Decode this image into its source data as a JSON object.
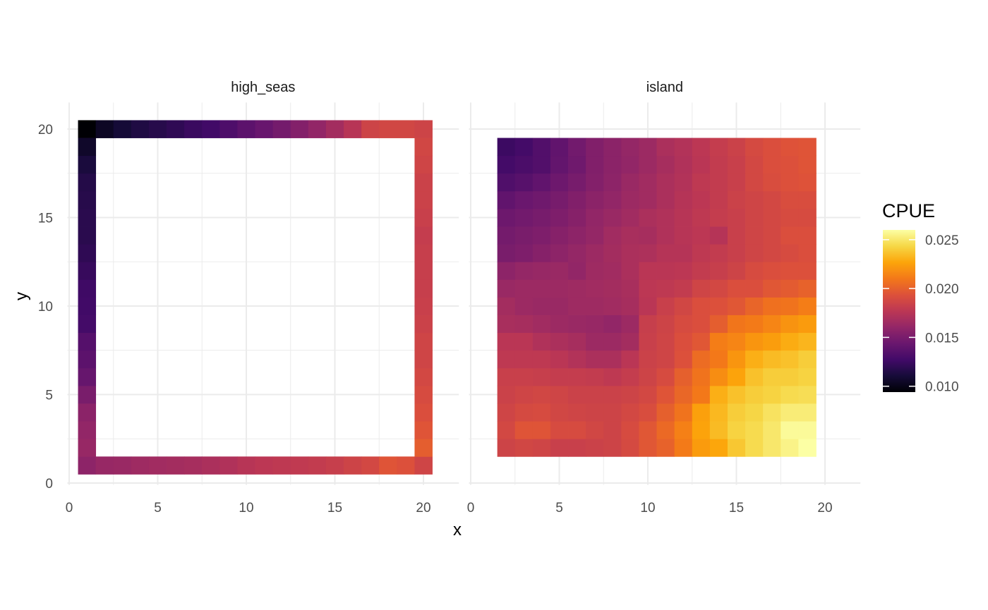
{
  "chart_data": {
    "type": "heatmap",
    "xlabel": "x",
    "ylabel": "y",
    "xlim": [
      0,
      20.5
    ],
    "ylim": [
      0,
      20.5
    ],
    "x_ticks": [
      0,
      5,
      10,
      15,
      20
    ],
    "y_ticks": [
      0,
      5,
      10,
      15,
      20
    ],
    "grid": true,
    "colorscale": "inferno",
    "legend": {
      "title": "CPUE",
      "placement": "right",
      "range": [
        0.0094,
        0.026
      ],
      "ticks": [
        0.01,
        0.015,
        0.02,
        0.025
      ],
      "tick_labels": [
        "0.010",
        "0.015",
        "0.020",
        "0.025"
      ]
    },
    "panels": [
      {
        "name": "high_seas",
        "top_row": {
          "y": 20,
          "x": [
            1,
            2,
            3,
            4,
            5,
            6,
            7,
            8,
            9,
            10,
            11,
            12,
            13,
            14,
            15,
            16,
            17,
            18,
            19,
            20
          ],
          "values": [
            0.0094,
            0.0104,
            0.011,
            0.0114,
            0.0117,
            0.012,
            0.0124,
            0.0127,
            0.0132,
            0.0138,
            0.0143,
            0.0148,
            0.0154,
            0.016,
            0.0167,
            0.0175,
            0.0185,
            0.0187,
            0.0187,
            0.0185
          ]
        },
        "bottom_row": {
          "y": 1,
          "x": [
            1,
            2,
            3,
            4,
            5,
            6,
            7,
            8,
            9,
            10,
            11,
            12,
            13,
            14,
            15,
            16,
            17,
            18,
            19,
            20
          ],
          "values": [
            0.0158,
            0.0162,
            0.0163,
            0.0165,
            0.0166,
            0.0167,
            0.0168,
            0.017,
            0.0172,
            0.0175,
            0.0177,
            0.0178,
            0.0179,
            0.018,
            0.0182,
            0.0185,
            0.0188,
            0.0195,
            0.0193,
            0.0186
          ]
        },
        "left_column": {
          "x": 1,
          "y": [
            2,
            3,
            4,
            5,
            6,
            7,
            8,
            9,
            10,
            11,
            12,
            13,
            14,
            15,
            16,
            17,
            18,
            19
          ],
          "values": [
            0.0162,
            0.016,
            0.0157,
            0.015,
            0.0142,
            0.0138,
            0.0135,
            0.0128,
            0.0127,
            0.0126,
            0.0123,
            0.012,
            0.0118,
            0.0118,
            0.0117,
            0.0116,
            0.0112,
            0.0106
          ]
        },
        "right_column": {
          "x": 20,
          "y": [
            2,
            3,
            4,
            5,
            6,
            7,
            8,
            9,
            10,
            11,
            12,
            13,
            14,
            15,
            16,
            17,
            18,
            19
          ],
          "values": [
            0.0199,
            0.0195,
            0.0192,
            0.019,
            0.0188,
            0.0186,
            0.0186,
            0.0184,
            0.0183,
            0.0182,
            0.0182,
            0.0182,
            0.0181,
            0.0183,
            0.0184,
            0.0184,
            0.0186,
            0.0187
          ]
        }
      },
      {
        "name": "island",
        "x": [
          2,
          3,
          4,
          5,
          6,
          7,
          8,
          9,
          10,
          11,
          12,
          13,
          14,
          15,
          16,
          17,
          18,
          19
        ],
        "y": [
          2,
          3,
          4,
          5,
          6,
          7,
          8,
          9,
          10,
          11,
          12,
          13,
          14,
          15,
          16,
          17,
          18,
          19
        ],
        "values": [
          [
            0.0185,
            0.0187,
            0.0186,
            0.0183,
            0.0183,
            0.0184,
            0.0185,
            0.0189,
            0.0196,
            0.0201,
            0.0211,
            0.0223,
            0.0227,
            0.0238,
            0.0245,
            0.025,
            0.0255,
            0.026
          ],
          [
            0.0188,
            0.0195,
            0.0195,
            0.019,
            0.019,
            0.0187,
            0.0185,
            0.019,
            0.0196,
            0.0204,
            0.0213,
            0.0226,
            0.0234,
            0.0242,
            0.0245,
            0.025,
            0.0258,
            0.0258
          ],
          [
            0.0186,
            0.0189,
            0.019,
            0.0187,
            0.0186,
            0.0185,
            0.0185,
            0.0188,
            0.0191,
            0.02,
            0.0208,
            0.0225,
            0.0233,
            0.024,
            0.0243,
            0.0248,
            0.0252,
            0.0252
          ],
          [
            0.0184,
            0.0186,
            0.0187,
            0.0186,
            0.0184,
            0.0184,
            0.0184,
            0.0185,
            0.0188,
            0.0195,
            0.0203,
            0.021,
            0.023,
            0.0236,
            0.024,
            0.0242,
            0.0245,
            0.0246
          ],
          [
            0.0183,
            0.0183,
            0.0182,
            0.0181,
            0.0181,
            0.018,
            0.0178,
            0.0181,
            0.0185,
            0.019,
            0.02,
            0.0208,
            0.0218,
            0.0226,
            0.0236,
            0.024,
            0.024,
            0.0242
          ],
          [
            0.0178,
            0.0178,
            0.0178,
            0.0176,
            0.0173,
            0.017,
            0.017,
            0.0176,
            0.0184,
            0.0186,
            0.0193,
            0.0205,
            0.021,
            0.0221,
            0.023,
            0.0234,
            0.0236,
            0.024
          ],
          [
            0.0176,
            0.0176,
            0.0172,
            0.017,
            0.0168,
            0.0164,
            0.0164,
            0.0167,
            0.0183,
            0.0186,
            0.0192,
            0.0196,
            0.0212,
            0.0215,
            0.0221,
            0.0224,
            0.0229,
            0.0232
          ],
          [
            0.0169,
            0.0168,
            0.0166,
            0.0164,
            0.0163,
            0.0162,
            0.016,
            0.0164,
            0.0182,
            0.0185,
            0.019,
            0.0192,
            0.0199,
            0.0209,
            0.0211,
            0.0215,
            0.022,
            0.0223
          ],
          [
            0.0167,
            0.0164,
            0.0163,
            0.0163,
            0.0165,
            0.0165,
            0.0166,
            0.0168,
            0.0176,
            0.0183,
            0.0187,
            0.0192,
            0.0193,
            0.0196,
            0.0202,
            0.0207,
            0.0208,
            0.0212
          ],
          [
            0.0163,
            0.0164,
            0.0164,
            0.0164,
            0.0165,
            0.0166,
            0.0167,
            0.0169,
            0.0177,
            0.0178,
            0.018,
            0.0186,
            0.0188,
            0.0192,
            0.0192,
            0.0196,
            0.0198,
            0.0201
          ],
          [
            0.0158,
            0.0161,
            0.0162,
            0.0163,
            0.016,
            0.0165,
            0.0166,
            0.017,
            0.0176,
            0.0176,
            0.0177,
            0.018,
            0.0182,
            0.0185,
            0.019,
            0.0192,
            0.0193,
            0.0193
          ],
          [
            0.015,
            0.0152,
            0.0155,
            0.0158,
            0.0161,
            0.0164,
            0.0167,
            0.017,
            0.0171,
            0.0174,
            0.0174,
            0.0178,
            0.018,
            0.0183,
            0.0186,
            0.0188,
            0.019,
            0.0192
          ],
          [
            0.0148,
            0.015,
            0.0152,
            0.0155,
            0.0158,
            0.0161,
            0.0166,
            0.0169,
            0.0168,
            0.0172,
            0.0175,
            0.0177,
            0.0174,
            0.0183,
            0.0186,
            0.0188,
            0.0192,
            0.0192
          ],
          [
            0.0145,
            0.0147,
            0.0149,
            0.0152,
            0.0155,
            0.016,
            0.0163,
            0.0166,
            0.017,
            0.0172,
            0.0175,
            0.0178,
            0.0181,
            0.0183,
            0.0186,
            0.0188,
            0.019,
            0.019
          ],
          [
            0.014,
            0.0144,
            0.0146,
            0.0149,
            0.0153,
            0.0157,
            0.016,
            0.0164,
            0.0166,
            0.017,
            0.0174,
            0.0177,
            0.018,
            0.0184,
            0.0186,
            0.0188,
            0.0191,
            0.0191
          ],
          [
            0.0133,
            0.0136,
            0.014,
            0.0145,
            0.0149,
            0.0154,
            0.0158,
            0.0163,
            0.0166,
            0.017,
            0.0173,
            0.0178,
            0.018,
            0.0183,
            0.0188,
            0.0191,
            0.0193,
            0.0194
          ],
          [
            0.0128,
            0.0131,
            0.0134,
            0.0141,
            0.0146,
            0.0153,
            0.0157,
            0.016,
            0.0164,
            0.0168,
            0.0172,
            0.0176,
            0.018,
            0.0183,
            0.0188,
            0.0192,
            0.0193,
            0.0195
          ],
          [
            0.0125,
            0.0128,
            0.0134,
            0.014,
            0.0147,
            0.0153,
            0.0157,
            0.0161,
            0.0164,
            0.017,
            0.0173,
            0.0177,
            0.0181,
            0.0184,
            0.0189,
            0.0192,
            0.0194,
            0.0195
          ]
        ]
      }
    ]
  }
}
